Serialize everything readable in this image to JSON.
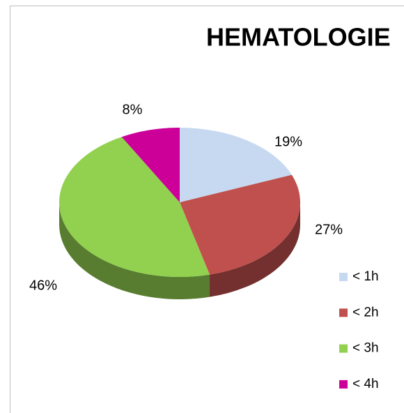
{
  "chart_data": {
    "type": "pie",
    "title": "HEMATOLOGIE",
    "categories": [
      "< 1h",
      "< 2h",
      "< 3h",
      "< 4h"
    ],
    "values": [
      19,
      27,
      46,
      8
    ],
    "value_labels": [
      "19%",
      "27%",
      "46%",
      "8%"
    ],
    "colors": [
      "#c6d9f1",
      "#c0504d",
      "#92d050",
      "#cc0099"
    ],
    "legend": "right"
  }
}
